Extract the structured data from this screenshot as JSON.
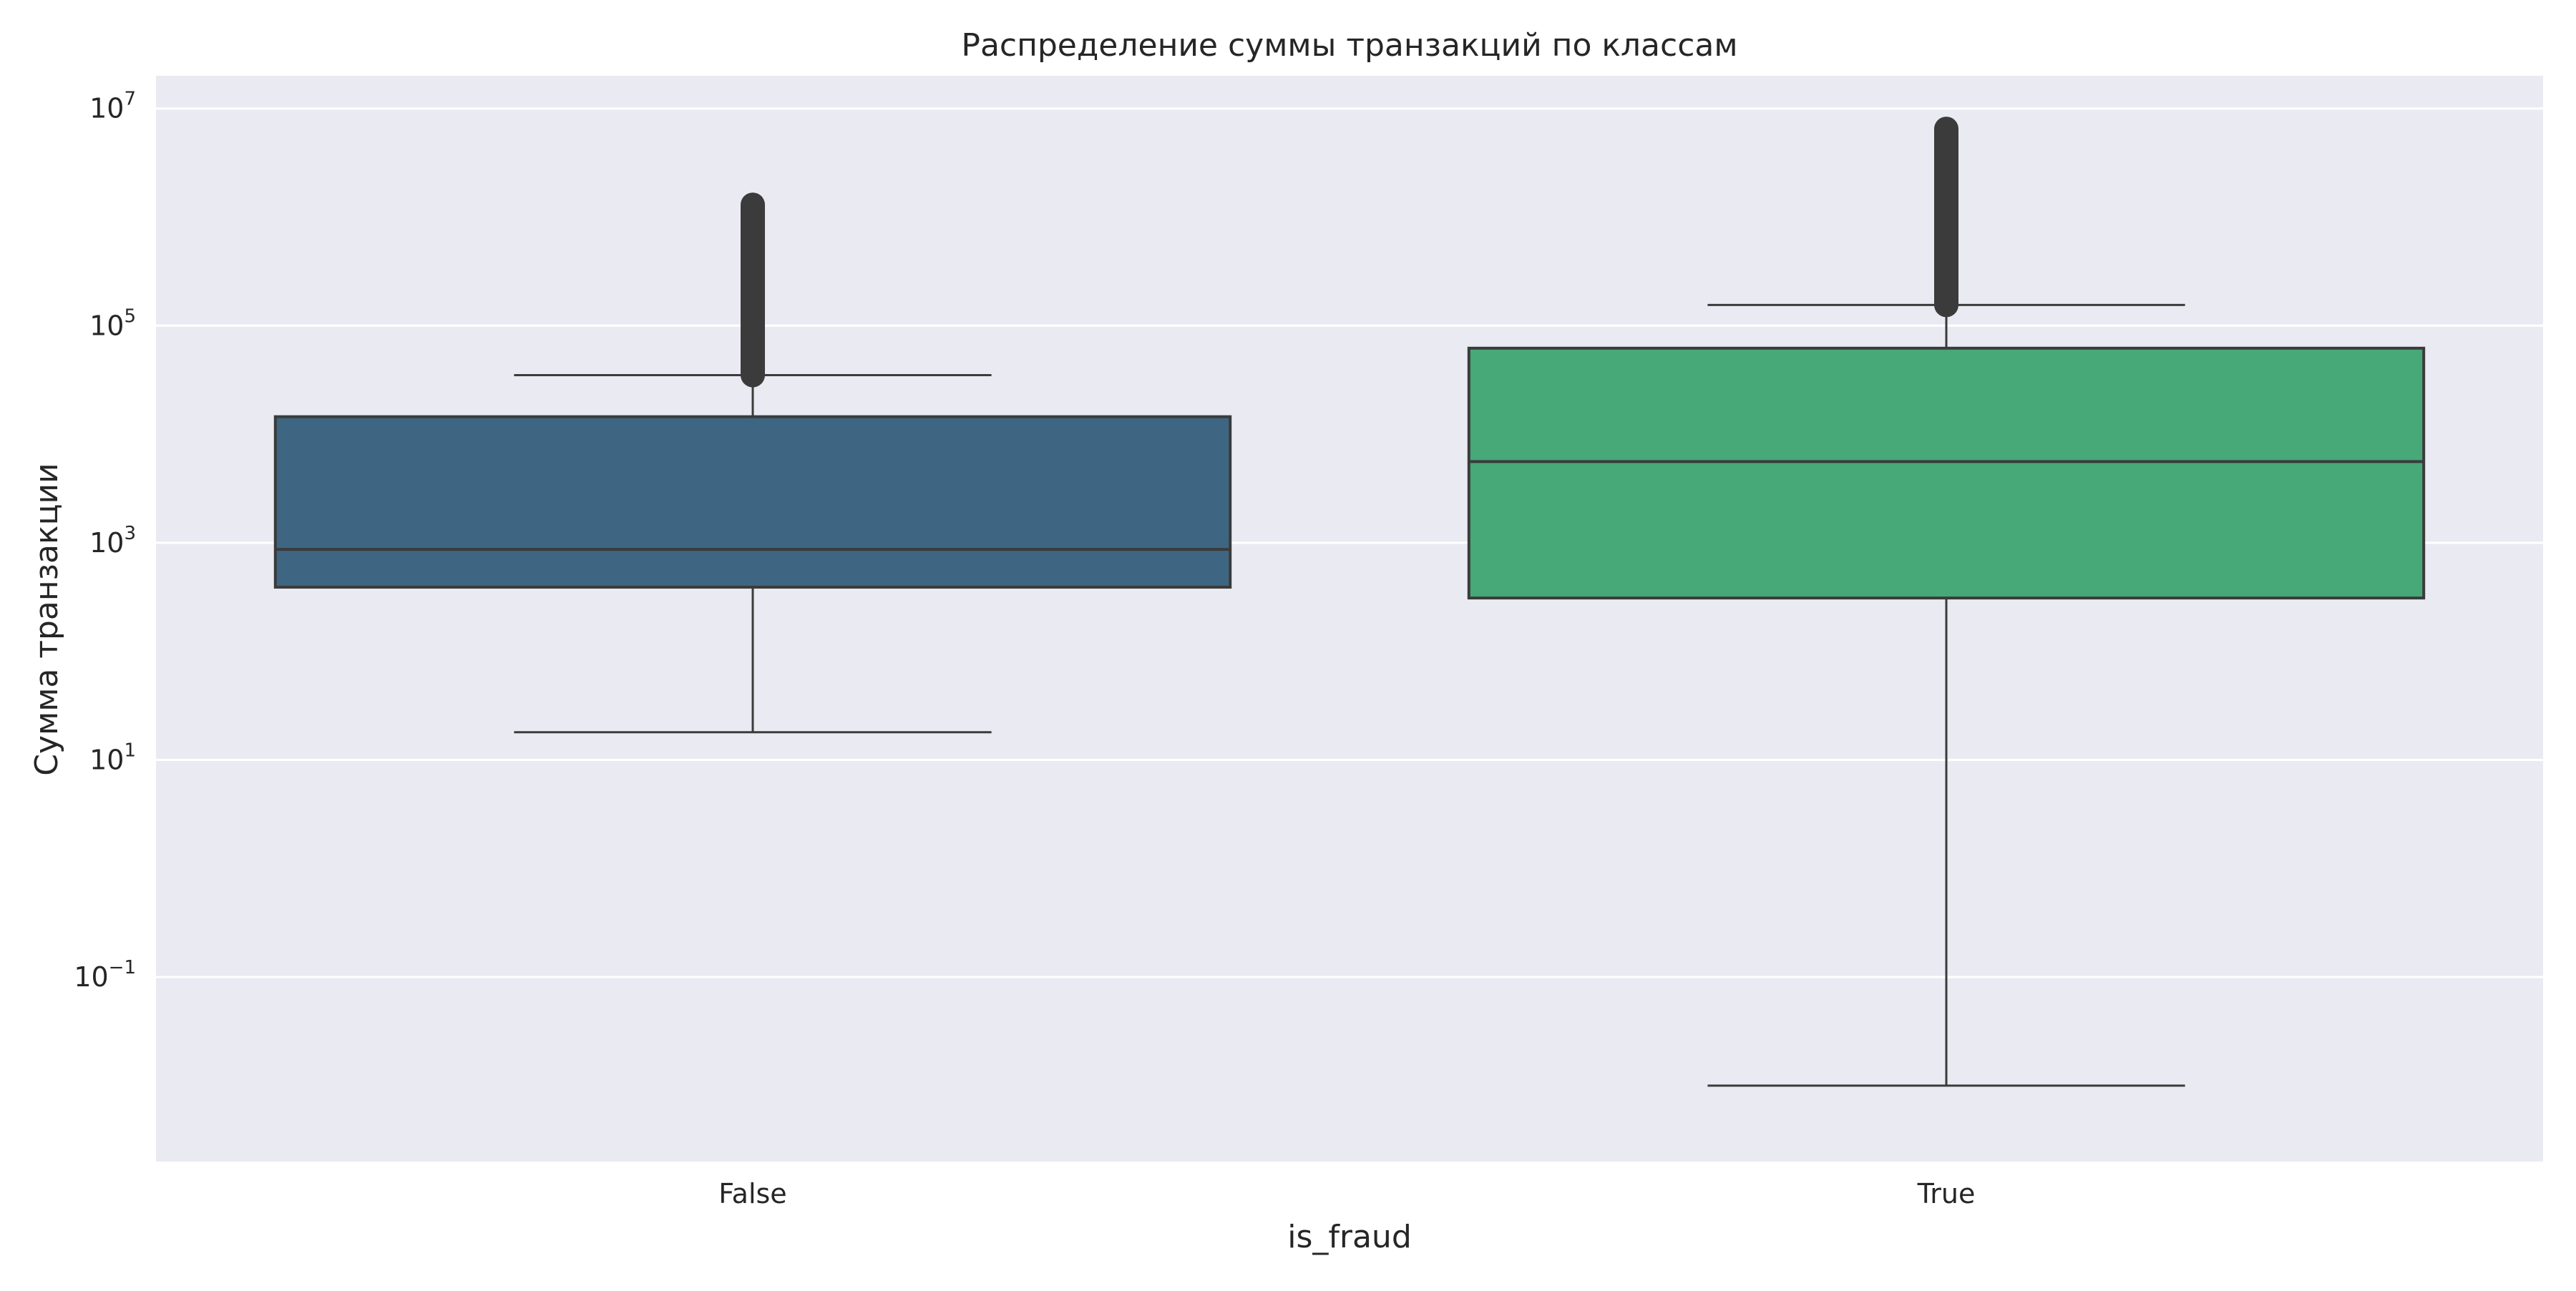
{
  "chart_data": {
    "type": "box",
    "title": "Распределение суммы транзакций по классам",
    "xlabel": "is_fraud",
    "ylabel": "Сумма транзакции",
    "yscale": "log",
    "ylim": [
      0.002,
      20000000
    ],
    "yticks": [
      {
        "value": 0.1,
        "base": "10",
        "exp": "−1"
      },
      {
        "value": 10,
        "base": "10",
        "exp": "1"
      },
      {
        "value": 1000,
        "base": "10",
        "exp": "3"
      },
      {
        "value": 100000,
        "base": "10",
        "exp": "5"
      },
      {
        "value": 10000000,
        "base": "10",
        "exp": "7"
      }
    ],
    "grid": true,
    "categories": [
      "False",
      "True"
    ],
    "boxes": [
      {
        "category": "False",
        "color": "#3e6683",
        "whisker_low": 18,
        "q1": 390,
        "median": 870,
        "q3": 14500,
        "whisker_high": 35000,
        "outliers_from": 35000,
        "outliers_to": 1300000
      },
      {
        "category": "True",
        "color": "#47a878",
        "whisker_low": 0.01,
        "q1": 310,
        "median": 5600,
        "q3": 62000,
        "whisker_high": 155000,
        "outliers_from": 155000,
        "outliers_to": 6500000
      }
    ]
  }
}
